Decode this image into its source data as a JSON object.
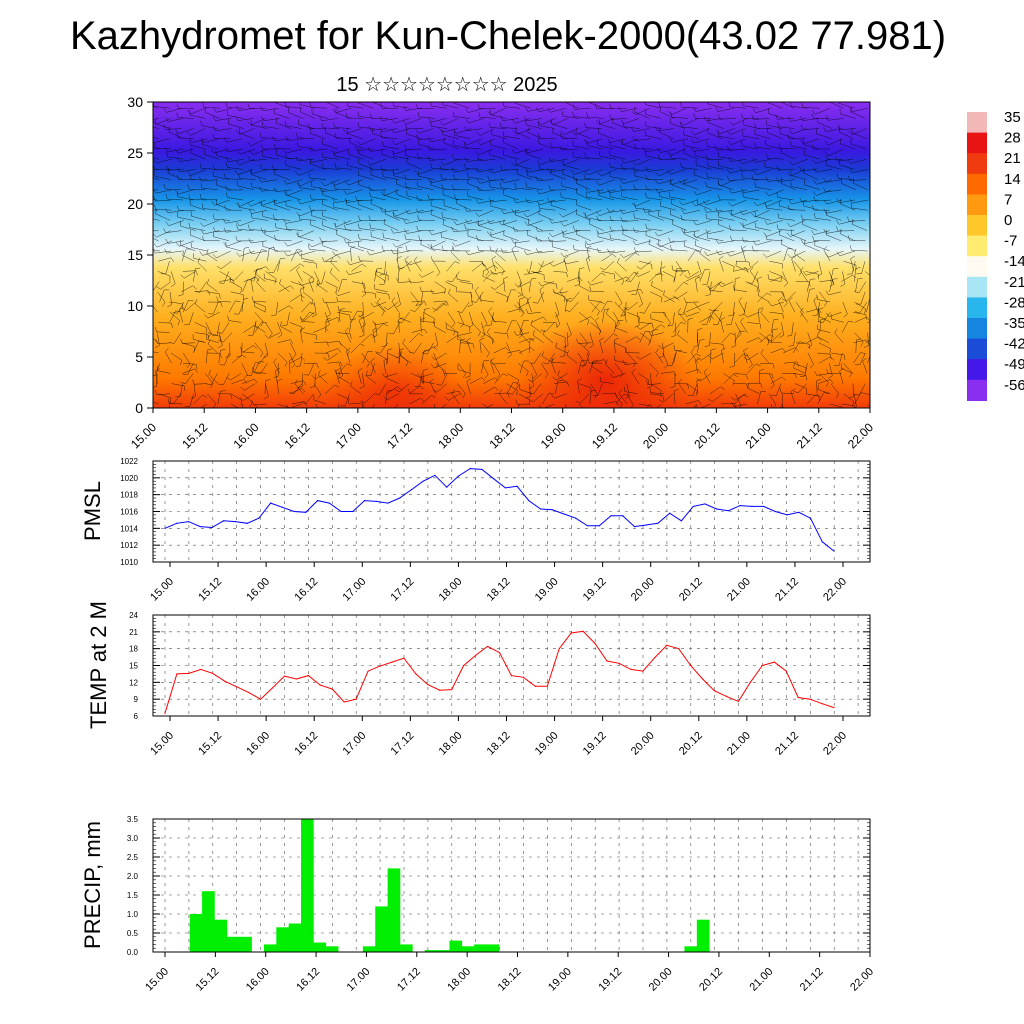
{
  "title": "Kazhydromet for Kun-Chelek-2000(43.02 77.981)",
  "subtitle": "15 ☆☆☆☆☆☆☆☆ 2025",
  "time_labels": [
    "15.00",
    "15.12",
    "16.00",
    "16.12",
    "17.00",
    "17.12",
    "18.00",
    "18.12",
    "19.00",
    "19.12",
    "20.00",
    "20.12",
    "21.00",
    "21.12",
    "22.00"
  ],
  "colors": {
    "pmsl": "#0000ff",
    "temp": "#ff0000",
    "precip": "#00ee00",
    "wind": "#000000"
  },
  "chart_data": [
    {
      "type": "heatmap",
      "name": "temperature cross-section with wind barbs",
      "ylim": [
        0,
        30
      ],
      "yticks": [
        0,
        5,
        10,
        15,
        20,
        25,
        30
      ],
      "colorbar": {
        "labels": [
          "35",
          "28",
          "21",
          "14",
          "7",
          "0",
          "-7",
          "-14",
          "-21",
          "-28",
          "-35",
          "-42",
          "-49",
          "-56"
        ],
        "colors": [
          "#f2b8b8",
          "#e81414",
          "#f03a10",
          "#ff6a00",
          "#ff9a10",
          "#ffc82a",
          "#ffec70",
          "#fffaf0",
          "#a8e6f6",
          "#28b6ec",
          "#1486e0",
          "#1a4cd8",
          "#4418e8",
          "#8a2ef0"
        ]
      }
    },
    {
      "type": "line",
      "name": "pmsl",
      "ylabel": "PMSL",
      "ylim": [
        1010,
        1022
      ],
      "yticks": [
        1010,
        1012,
        1014,
        1016,
        1018,
        1020,
        1022
      ],
      "values": [
        1014.0,
        1014.6,
        1014.8,
        1014.2,
        1014.1,
        1014.9,
        1014.8,
        1014.6,
        1015.2,
        1017.0,
        1016.5,
        1016.0,
        1015.9,
        1017.3,
        1017.0,
        1016.0,
        1016.0,
        1017.3,
        1017.2,
        1017.0,
        1017.6,
        1018.6,
        1019.6,
        1020.3,
        1018.9,
        1020.2,
        1021.1,
        1021.0,
        1019.9,
        1018.8,
        1019.0,
        1017.3,
        1016.3,
        1016.2,
        1015.7,
        1015.2,
        1014.3,
        1014.3,
        1015.5,
        1015.5,
        1014.2,
        1014.4,
        1014.6,
        1015.8,
        1014.9,
        1016.6,
        1016.9,
        1016.3,
        1016.1,
        1016.7,
        1016.6,
        1016.6,
        1016.0,
        1015.6,
        1015.9,
        1015.2,
        1012.4,
        1011.3
      ]
    },
    {
      "type": "line",
      "name": "temp",
      "ylabel": "TEMP at 2 M",
      "ylim": [
        6,
        24
      ],
      "yticks": [
        6,
        9,
        12,
        15,
        18,
        21,
        24
      ],
      "values": [
        6.5,
        13.5,
        13.6,
        14.3,
        13.6,
        12.2,
        11.2,
        10.2,
        9.0,
        11.0,
        13.1,
        12.6,
        13.2,
        11.5,
        10.8,
        8.5,
        9.0,
        14.0,
        14.9,
        15.6,
        16.3,
        13.5,
        11.6,
        10.6,
        10.7,
        15.0,
        16.8,
        18.4,
        17.3,
        13.2,
        12.9,
        11.3,
        11.3,
        18.0,
        20.8,
        21.1,
        18.9,
        15.8,
        15.4,
        14.3,
        14.0,
        16.4,
        18.6,
        18.0,
        15.0,
        12.6,
        10.5,
        9.5,
        8.6,
        12.0,
        15.0,
        15.6,
        14.0,
        9.3,
        9.0,
        8.2,
        7.5
      ]
    },
    {
      "type": "bar",
      "name": "precip",
      "ylabel": "PRECIP, mm",
      "ylim": [
        0,
        3.5
      ],
      "yticks": [
        "0.0",
        "0.5",
        "1.0",
        "1.5",
        "2.0",
        "2.5",
        "3.0",
        "3.5"
      ],
      "values": [
        0,
        0,
        1.0,
        1.6,
        0.85,
        0.4,
        0.4,
        0,
        0.2,
        0.65,
        0.75,
        3.5,
        0.25,
        0.15,
        0,
        0,
        0.15,
        1.2,
        2.2,
        0.2,
        0,
        0.05,
        0.05,
        0.3,
        0.15,
        0.2,
        0.2,
        0,
        0,
        0,
        0,
        0,
        0,
        0,
        0,
        0,
        0,
        0,
        0,
        0,
        0,
        0,
        0.15,
        0.85,
        0,
        0,
        0,
        0,
        0,
        0,
        0,
        0,
        0,
        0,
        0,
        0,
        0
      ]
    }
  ]
}
